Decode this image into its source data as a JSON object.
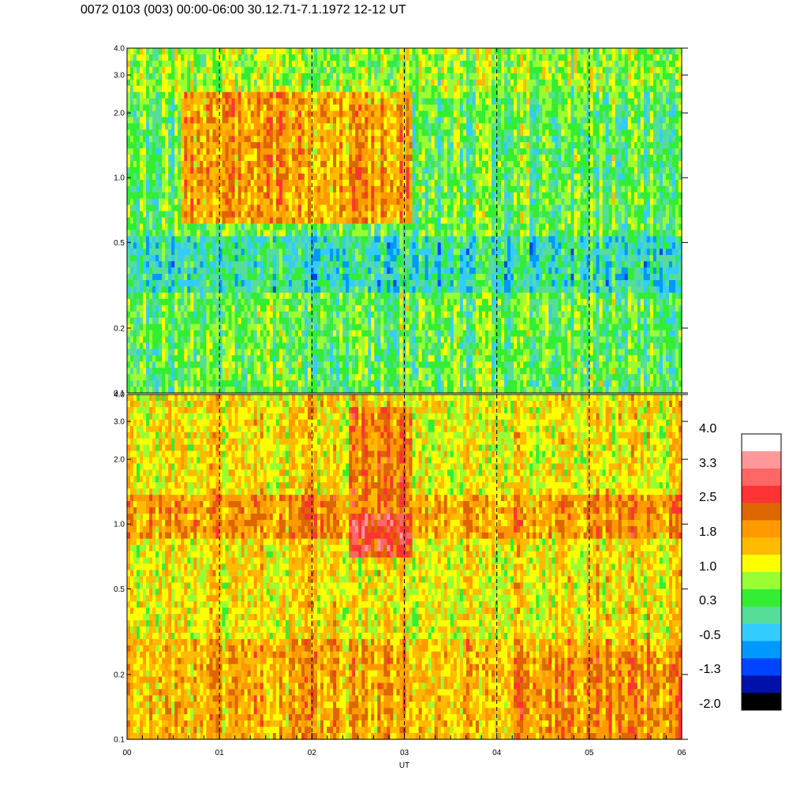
{
  "title": "0072 0103 (003) 00:00-06:00 30.12.71-7.1.1972  12-12 UT",
  "chart_data": {
    "type": "heatmap",
    "title": "0072 0103 (003) 00:00-06:00 30.12.71-7.1.1972  12-12 UT",
    "xlabel": "UT",
    "x_ticks": [
      "00",
      "01",
      "02",
      "03",
      "04",
      "05",
      "06"
    ],
    "x_range": [
      0,
      6
    ],
    "dashed_gridlines_at": [
      1,
      2,
      3,
      4,
      5
    ],
    "panels": [
      {
        "name": "upper",
        "y_scale": "log",
        "ylim": [
          0.1,
          4.0
        ],
        "y_ticks": [
          "0.1",
          "0.2",
          "0.5",
          "1.0",
          "2.0",
          "3.0",
          "4.0"
        ],
        "y_tick_values": [
          0.1,
          0.2,
          0.5,
          1.0,
          2.0,
          3.0,
          4.0
        ],
        "background_level": 0.5,
        "features": [
          {
            "t0": 0.6,
            "t1": 3.1,
            "f0": 0.6,
            "f1": 2.5,
            "level": 1.8
          },
          {
            "t0": 2.3,
            "t1": 3.05,
            "f0": 0.7,
            "f1": 1.1,
            "level": 2.0
          },
          {
            "t0": 0.0,
            "t1": 6.0,
            "f0": 0.3,
            "f1": 0.55,
            "level": 0.0
          },
          {
            "t0": 0.0,
            "t1": 6.0,
            "f0": 2.5,
            "f1": 4.0,
            "level": 0.8
          }
        ]
      },
      {
        "name": "lower",
        "y_scale": "log",
        "ylim": [
          0.1,
          4.0
        ],
        "y_ticks": [
          "0.1",
          "0.2",
          "0.5",
          "1.0",
          "2.0",
          "3.0",
          "4.0"
        ],
        "y_tick_values": [
          0.1,
          0.2,
          0.5,
          1.0,
          2.0,
          3.0,
          4.0
        ],
        "background_level": 1.3,
        "features": [
          {
            "t0": 0.0,
            "t1": 6.0,
            "f0": 0.85,
            "f1": 1.4,
            "level": 1.9
          },
          {
            "t0": 2.4,
            "t1": 3.1,
            "f0": 0.7,
            "f1": 1.1,
            "level": 2.7
          },
          {
            "t0": 2.4,
            "t1": 3.1,
            "f0": 1.1,
            "f1": 3.5,
            "level": 2.1
          },
          {
            "t0": 0.0,
            "t1": 6.0,
            "f0": 0.1,
            "f1": 0.3,
            "level": 1.7
          },
          {
            "t0": 4.2,
            "t1": 6.0,
            "f0": 0.1,
            "f1": 0.25,
            "level": 2.0
          }
        ]
      }
    ],
    "colorbar": {
      "labels": [
        "4.0",
        "3.3",
        "2.5",
        "1.8",
        "1.0",
        "0.3",
        "-0.5",
        "-1.3",
        "-2.0"
      ],
      "range": [
        -2.0,
        4.0
      ],
      "colors": [
        "#ffffff",
        "#ff9999",
        "#ff6666",
        "#ff3333",
        "#dd6600",
        "#ff9900",
        "#ffbb00",
        "#ffff00",
        "#99ff33",
        "#33ee33",
        "#55dd99",
        "#33ccff",
        "#0099ff",
        "#0044ff",
        "#0011aa",
        "#000000"
      ]
    }
  }
}
